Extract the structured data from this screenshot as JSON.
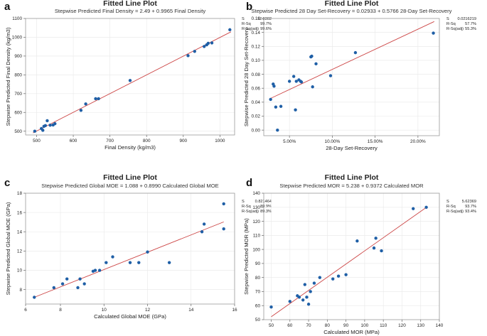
{
  "chart_data": [
    {
      "panel": "a",
      "type": "scatter",
      "title": "Fitted Line Plot",
      "subtitle": "Stepwise Predicted Final Density = 2.49 + 0.9965 Final Density",
      "xlabel": "Final Density (kg/m3)",
      "ylabel": "Stepwise Predicted Final Density (kg/m3)",
      "xlim": [
        470,
        1040
      ],
      "ylim": [
        480,
        1100
      ],
      "xticks": [
        500,
        600,
        700,
        800,
        900,
        1000
      ],
      "yticks": [
        500,
        600,
        700,
        800,
        900,
        1000,
        1100
      ],
      "xtick_labels": [
        "500",
        "600",
        "700",
        "800",
        "900",
        "1000"
      ],
      "ytick_labels": [
        "500",
        "600",
        "700",
        "800",
        "900",
        "1000",
        "1100"
      ],
      "fit": {
        "intercept": 2.49,
        "slope": 0.9965,
        "x_range": [
          490,
          1030
        ]
      },
      "stats": {
        "labels": [
          "S",
          "R-Sq",
          "R-Sq(adj)"
        ],
        "values": [
          "12.0302",
          "99.7%",
          "99.6%"
        ]
      },
      "x": [
        495,
        513,
        517,
        520,
        524,
        529,
        537,
        545,
        550,
        621,
        634,
        661,
        669,
        755,
        913,
        931,
        957,
        964,
        968,
        978,
        1027
      ],
      "y": [
        500,
        514,
        505,
        526,
        530,
        556,
        532,
        533,
        540,
        611,
        645,
        673,
        673,
        770,
        902,
        925,
        951,
        960,
        968,
        970,
        1040
      ]
    },
    {
      "panel": "b",
      "type": "scatter",
      "title": "Fitted Line Plot",
      "subtitle": "Stepwise Predicted 28 Day Set-Recovery = 0.02933 + 0.5766 28-Day Set-Recovery",
      "xlabel": "28-Day Set-Recovery",
      "ylabel": "Stepwise Predicted 28 Day Set-Recovery",
      "xlim": [
        0.02,
        0.225
      ],
      "ylim": [
        -0.008,
        0.16
      ],
      "xticks": [
        0.05,
        0.1,
        0.15,
        0.2
      ],
      "yticks": [
        0.0,
        0.02,
        0.04,
        0.06,
        0.08,
        0.1,
        0.12,
        0.14,
        0.16
      ],
      "xtick_labels": [
        "5.00%",
        "10.00%",
        "15.00%",
        "20.00%"
      ],
      "ytick_labels": [
        "0.00",
        "0.02",
        "0.04",
        "0.06",
        "0.08",
        "0.10",
        "0.12",
        "0.14",
        "0.16"
      ],
      "fit": {
        "intercept": 0.02933,
        "slope": 0.5766,
        "x_range": [
          0.028,
          0.219
        ]
      },
      "stats": {
        "labels": [
          "S",
          "R-Sq",
          "R-Sq(adj)"
        ],
        "values": [
          "0.0216219",
          "57.7%",
          "55.3%"
        ]
      },
      "x": [
        0.028,
        0.031,
        0.032,
        0.034,
        0.036,
        0.04,
        0.05,
        0.055,
        0.057,
        0.058,
        0.061,
        0.063,
        0.064,
        0.075,
        0.076,
        0.077,
        0.081,
        0.098,
        0.127,
        0.218
      ],
      "y": [
        0.044,
        0.066,
        0.063,
        0.033,
        0.0,
        0.034,
        0.07,
        0.077,
        0.029,
        0.07,
        0.072,
        0.07,
        0.069,
        0.105,
        0.106,
        0.062,
        0.095,
        0.078,
        0.111,
        0.139
      ]
    },
    {
      "panel": "c",
      "type": "scatter",
      "title": "Fitted Line Plot",
      "subtitle": "Stepwise Predicted Global MOE = 1.088 + 0.8990 Calculated Global MOE",
      "xlabel": "Calculated Global MOE (GPa)",
      "ylabel": "Stepwise Predicted Global MOE (GPa)",
      "xlim": [
        6.4,
        16.0
      ],
      "ylim": [
        6.5,
        18.0
      ],
      "xticks": [
        6,
        8,
        10,
        12,
        14,
        16
      ],
      "yticks": [
        8,
        10,
        12,
        14,
        16,
        18
      ],
      "xtick_labels": [
        "6",
        "8",
        "10",
        "12",
        "14",
        "16"
      ],
      "ytick_labels": [
        "8",
        "10",
        "12",
        "14",
        "16",
        "18"
      ],
      "fit": {
        "intercept": 1.088,
        "slope": 0.899,
        "x_range": [
          6.8,
          15.5
        ]
      },
      "stats": {
        "labels": [
          "S",
          "R-Sq",
          "R-Sq(adj)"
        ],
        "values": [
          "0.821464",
          "89.9%",
          "89.3%"
        ]
      },
      "x": [
        6.8,
        7.7,
        8.1,
        8.3,
        8.8,
        8.9,
        9.1,
        9.5,
        9.6,
        9.8,
        10.1,
        10.4,
        11.2,
        11.6,
        12.0,
        13.0,
        14.5,
        14.6,
        15.5,
        15.5
      ],
      "y": [
        7.2,
        8.2,
        8.6,
        9.1,
        8.2,
        9.1,
        8.6,
        9.9,
        10.0,
        10.0,
        10.8,
        11.4,
        10.8,
        10.8,
        11.9,
        10.8,
        14.0,
        14.8,
        16.9,
        14.3
      ]
    },
    {
      "panel": "d",
      "type": "scatter",
      "title": "Fitted Line Plot",
      "subtitle": "Stepwise Predicted MOR = 5.238 + 0.9372 Calculated MOR",
      "xlabel": "Calculated MOR (MPa)",
      "ylabel": "Stepwise Predicted MOR (MPa)",
      "xlim": [
        46,
        140
      ],
      "ylim": [
        50,
        140
      ],
      "xticks": [
        50,
        60,
        70,
        80,
        90,
        100,
        110,
        120,
        130,
        140
      ],
      "yticks": [
        50,
        60,
        70,
        80,
        90,
        100,
        110,
        120,
        130,
        140
      ],
      "xtick_labels": [
        "50",
        "60",
        "70",
        "80",
        "90",
        "100",
        "110",
        "120",
        "130",
        "140"
      ],
      "ytick_labels": [
        "50",
        "60",
        "70",
        "80",
        "90",
        "100",
        "110",
        "120",
        "130",
        "140"
      ],
      "fit": {
        "intercept": 5.238,
        "slope": 0.9372,
        "x_range": [
          50,
          133
        ]
      },
      "stats": {
        "labels": [
          "S",
          "R-Sq",
          "R-Sq(adj)"
        ],
        "values": [
          "5.62369",
          "93.7%",
          "93.4%"
        ]
      },
      "x": [
        50,
        60,
        64,
        65,
        67,
        68,
        69,
        70,
        71,
        73,
        76,
        83,
        86,
        90,
        96,
        105,
        106,
        109,
        126,
        133
      ],
      "y": [
        59,
        63,
        67,
        66,
        64,
        75,
        66,
        61,
        70,
        76,
        80,
        79,
        81,
        82,
        106,
        101,
        108,
        99,
        129,
        130
      ]
    }
  ]
}
